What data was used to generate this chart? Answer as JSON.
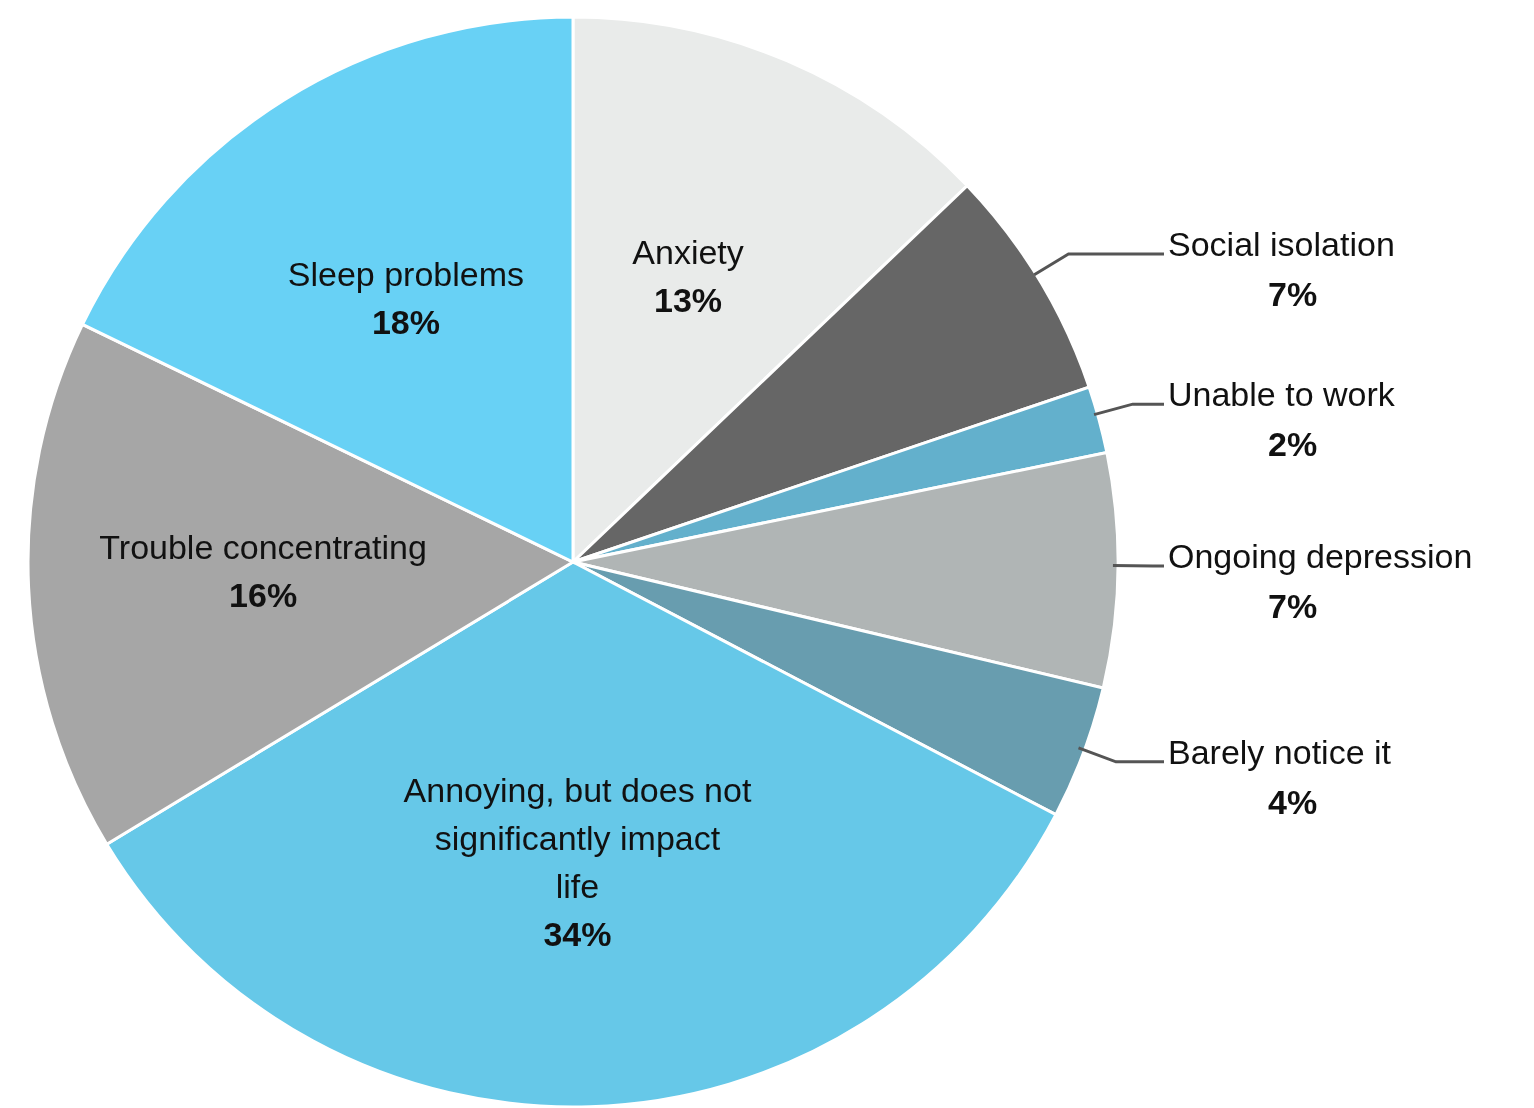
{
  "chart_data": {
    "type": "pie",
    "categories": [
      "Anxiety",
      "Social isolation",
      "Unable to work",
      "Ongoing depression",
      "Barely notice it",
      "Annoying, but does not significantly impact life",
      "Trouble concentrating",
      "Sleep problems"
    ],
    "values": [
      13,
      7,
      2,
      7,
      4,
      34,
      16,
      18
    ],
    "value_labels": [
      "13%",
      "7%",
      "2%",
      "7%",
      "4%",
      "34%",
      "16%",
      "18%"
    ],
    "colors": [
      "#e9ebea",
      "#666666",
      "#63b0cc",
      "#b0b5b5",
      "#689daf",
      "#66c8e8",
      "#a6a6a6",
      "#68d1f5"
    ],
    "legend": false
  }
}
